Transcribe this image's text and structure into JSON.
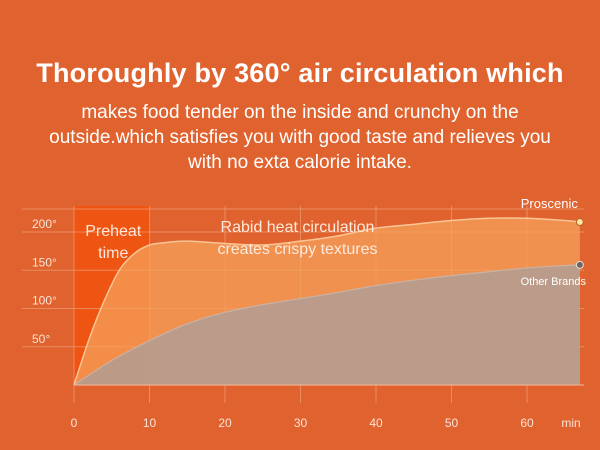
{
  "header": {
    "title": "Thoroughly by 360° air circulation which",
    "subtitle": "makes food tender on the inside and crunchy on the outside.which satisfies you with good taste and relieves you with no exta calorie intake."
  },
  "colors": {
    "background": "#e0632f",
    "preheat_band": "#ee5412",
    "proscenic": "#f5a35c",
    "other_brands": "#b59c8f",
    "grid": "#ee9a72"
  },
  "chart_data": {
    "type": "area",
    "x_unit": "min",
    "xlim": [
      0,
      68
    ],
    "ylim": [
      0,
      240
    ],
    "x_ticks": [
      0,
      10,
      20,
      30,
      40,
      50,
      60
    ],
    "x_unit_label": "min",
    "y_ticks": [
      50,
      100,
      150,
      200
    ],
    "y_tick_labels": [
      "50°",
      "100°",
      "150°",
      "200°"
    ],
    "grid": true,
    "phases": [
      {
        "label": "Preheat\ntime",
        "x_start": 0,
        "x_end": 10
      },
      {
        "label": "Rabid heat circulation\ncreates crispy textures",
        "x_start": 10,
        "x_end": 68
      }
    ],
    "series": [
      {
        "name": "Proscenic",
        "x": [
          0,
          2,
          4,
          6,
          8,
          10,
          12,
          15,
          20,
          25,
          30,
          35,
          40,
          45,
          50,
          55,
          60,
          65,
          67
        ],
        "values": [
          0,
          60,
          110,
          150,
          172,
          183,
          186,
          188,
          185,
          183,
          188,
          195,
          205,
          210,
          215,
          218,
          218,
          215,
          213
        ]
      },
      {
        "name": "Other Brands",
        "x": [
          0,
          5,
          10,
          15,
          20,
          25,
          30,
          35,
          40,
          45,
          50,
          55,
          60,
          65,
          67
        ],
        "values": [
          0,
          32,
          58,
          80,
          95,
          105,
          113,
          121,
          130,
          137,
          143,
          148,
          153,
          156,
          157
        ]
      }
    ]
  }
}
